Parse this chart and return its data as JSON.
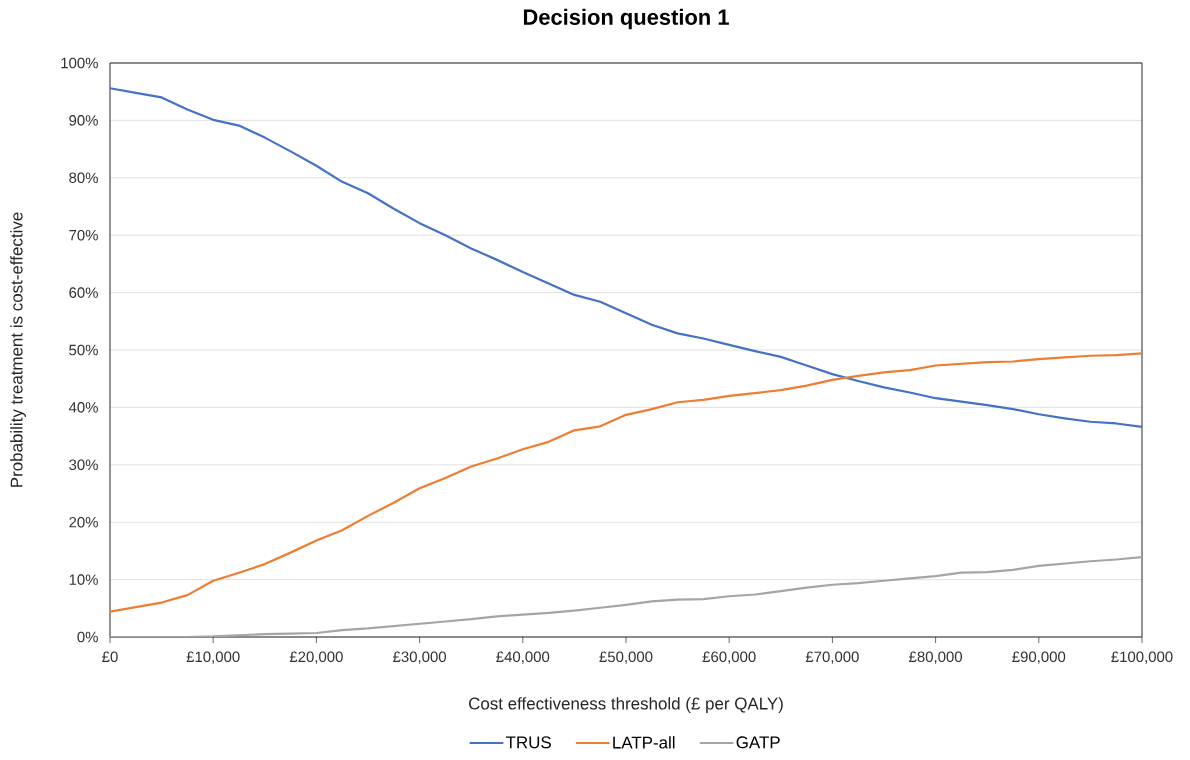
{
  "chart_data": {
    "type": "line",
    "title": "Decision question 1",
    "xlabel": "Cost effectiveness threshold (£ per QALY)",
    "ylabel": "Probability treatment is cost-effective",
    "x": [
      0,
      2500,
      5000,
      7500,
      10000,
      12500,
      15000,
      17500,
      20000,
      22500,
      25000,
      27500,
      30000,
      32500,
      35000,
      37500,
      40000,
      42500,
      45000,
      47500,
      50000,
      52500,
      55000,
      57500,
      60000,
      62500,
      65000,
      67500,
      70000,
      72500,
      75000,
      77500,
      80000,
      82500,
      85000,
      87500,
      90000,
      92500,
      95000,
      97500,
      100000
    ],
    "series": [
      {
        "name": "TRUS",
        "color": "#4472c4",
        "values": [
          95.6,
          94.8,
          94.0,
          91.9,
          90.1,
          89.1,
          87.0,
          84.6,
          82.1,
          79.3,
          77.3,
          74.6,
          72.1,
          70.0,
          67.7,
          65.7,
          63.6,
          61.6,
          59.6,
          58.4,
          56.4,
          54.4,
          52.9,
          52.0,
          50.9,
          49.8,
          48.8,
          47.3,
          45.8,
          44.6,
          43.5,
          42.6,
          41.6,
          41.0,
          40.4,
          39.7,
          38.8,
          38.1,
          37.5,
          37.2,
          36.6
        ]
      },
      {
        "name": "LATP-all",
        "color": "#ed7d31",
        "values": [
          4.4,
          5.2,
          6.0,
          7.3,
          9.8,
          11.2,
          12.7,
          14.7,
          16.8,
          18.6,
          21.1,
          23.4,
          25.9,
          27.7,
          29.7,
          31.1,
          32.7,
          34.0,
          36.0,
          36.7,
          38.7,
          39.7,
          40.9,
          41.3,
          42.0,
          42.5,
          43.0,
          43.8,
          44.8,
          45.5,
          46.1,
          46.5,
          47.3,
          47.6,
          47.9,
          48.0,
          48.4,
          48.7,
          49.0,
          49.1,
          49.4
        ]
      },
      {
        "name": "GATP",
        "color": "#a5a5a5",
        "values": [
          0,
          0,
          0,
          0,
          0.1,
          0.3,
          0.5,
          0.6,
          0.7,
          1.2,
          1.5,
          1.9,
          2.3,
          2.7,
          3.1,
          3.6,
          3.9,
          4.2,
          4.6,
          5.1,
          5.6,
          6.2,
          6.5,
          6.6,
          7.1,
          7.4,
          8.0,
          8.6,
          9.1,
          9.4,
          9.8,
          10.2,
          10.6,
          11.2,
          11.3,
          11.7,
          12.4,
          12.8,
          13.2,
          13.5,
          13.9
        ]
      }
    ],
    "xlim": [
      0,
      100000
    ],
    "xticks": [
      {
        "value": 0,
        "label": "£0"
      },
      {
        "value": 10000,
        "label": "£10,000"
      },
      {
        "value": 20000,
        "label": "£20,000"
      },
      {
        "value": 30000,
        "label": "£30,000"
      },
      {
        "value": 40000,
        "label": "£40,000"
      },
      {
        "value": 50000,
        "label": "£50,000"
      },
      {
        "value": 60000,
        "label": "£60,000"
      },
      {
        "value": 70000,
        "label": "£70,000"
      },
      {
        "value": 80000,
        "label": "£80,000"
      },
      {
        "value": 90000,
        "label": "£90,000"
      },
      {
        "value": 100000,
        "label": "£100,000"
      }
    ],
    "ylim": [
      0,
      100
    ],
    "yticks": [
      {
        "value": 0,
        "label": "0%"
      },
      {
        "value": 10,
        "label": "10%"
      },
      {
        "value": 20,
        "label": "20%"
      },
      {
        "value": 30,
        "label": "30%"
      },
      {
        "value": 40,
        "label": "40%"
      },
      {
        "value": 50,
        "label": "50%"
      },
      {
        "value": 60,
        "label": "60%"
      },
      {
        "value": 70,
        "label": "70%"
      },
      {
        "value": 80,
        "label": "80%"
      },
      {
        "value": 90,
        "label": "90%"
      },
      {
        "value": 100,
        "label": "100%"
      }
    ],
    "grid": "y",
    "legend": "bottom"
  }
}
